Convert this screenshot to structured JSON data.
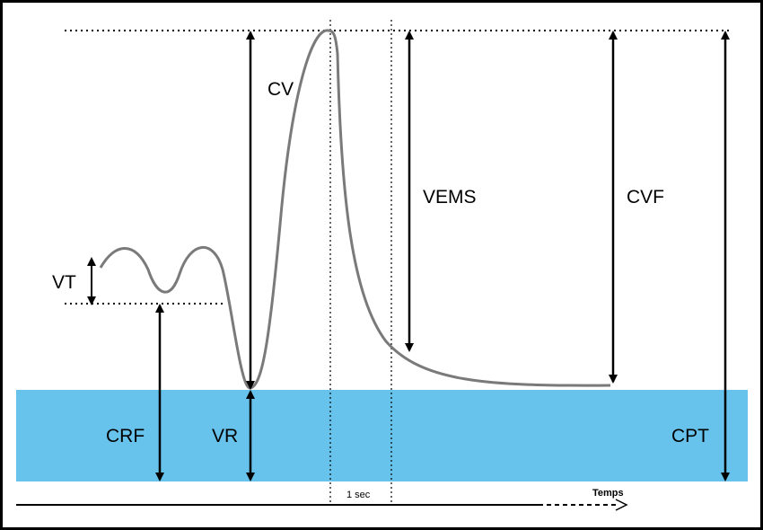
{
  "labels": {
    "vt": "VT",
    "cv": "CV",
    "vems": "VEMS",
    "cvf": "CVF",
    "crf": "CRF",
    "vr": "VR",
    "cpt": "CPT",
    "one_sec": "1 sec",
    "temps": "Temps"
  },
  "colors": {
    "residual_band": "#67c3ec",
    "curve": "#7a7a7a",
    "arrows": "#000000",
    "frame": "#000000"
  }
}
